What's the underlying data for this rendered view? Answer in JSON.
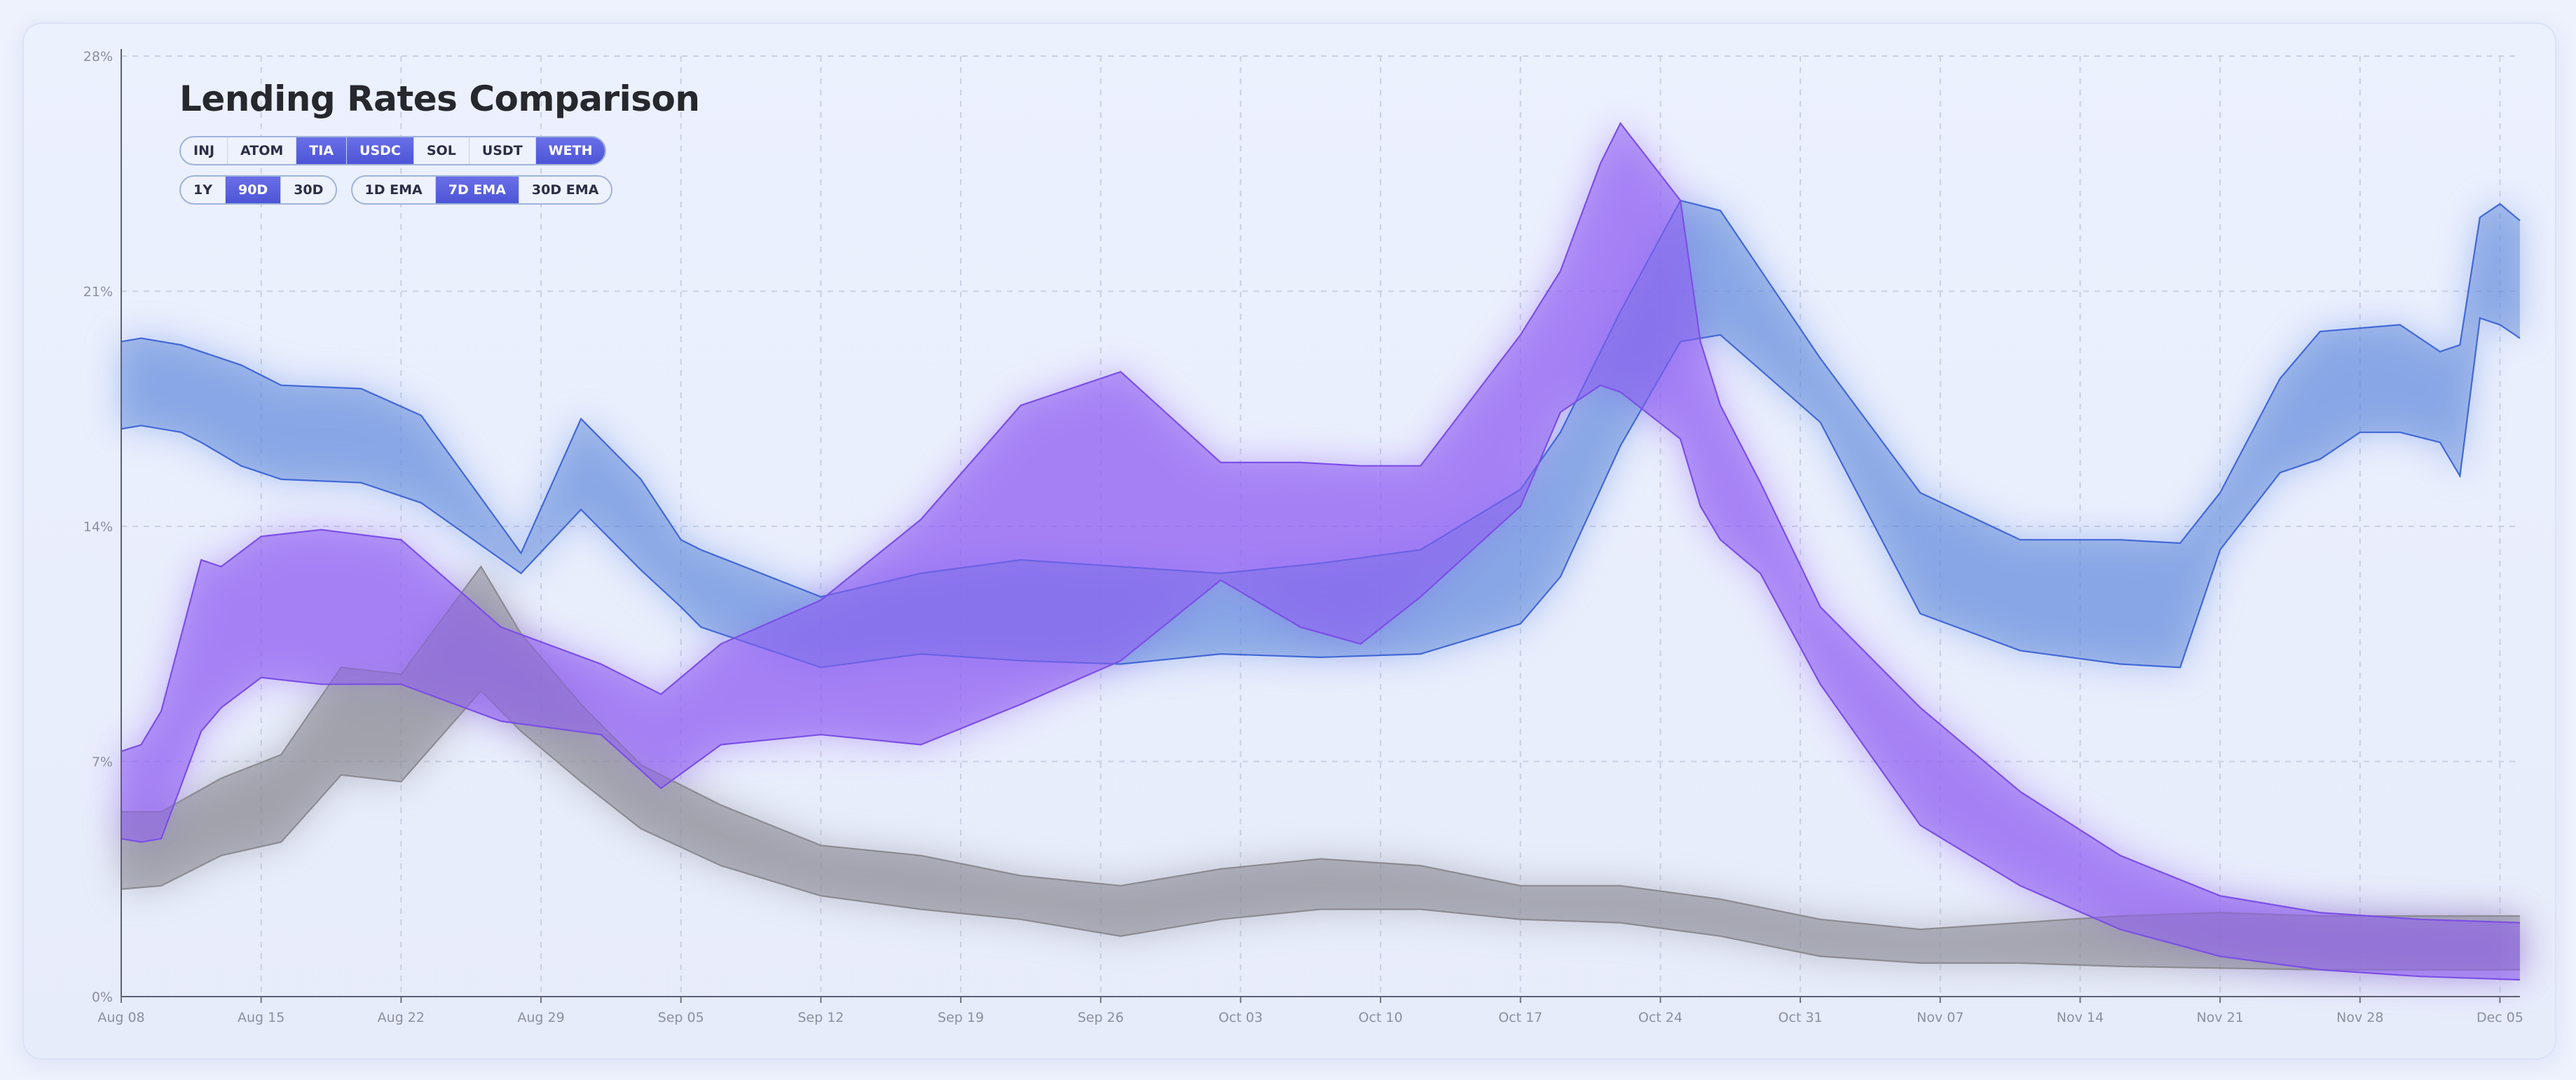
{
  "title": "Lending Rates Comparison",
  "assets": [
    {
      "label": "INJ",
      "selected": false
    },
    {
      "label": "ATOM",
      "selected": false
    },
    {
      "label": "TIA",
      "selected": true
    },
    {
      "label": "USDC",
      "selected": true
    },
    {
      "label": "SOL",
      "selected": false
    },
    {
      "label": "USDT",
      "selected": false
    },
    {
      "label": "WETH",
      "selected": true
    }
  ],
  "ranges": [
    {
      "label": "1Y",
      "selected": false
    },
    {
      "label": "90D",
      "selected": true
    },
    {
      "label": "30D",
      "selected": false
    }
  ],
  "smoothing": [
    {
      "label": "1D EMA",
      "selected": false
    },
    {
      "label": "7D EMA",
      "selected": true
    },
    {
      "label": "30D EMA",
      "selected": false
    }
  ],
  "chart_data": {
    "type": "area",
    "title": "Lending Rates Comparison",
    "x_ticks": [
      "Aug 08",
      "Aug 15",
      "Aug 22",
      "Aug 29",
      "Sep 05",
      "Sep 12",
      "Sep 19",
      "Sep 26",
      "Oct 03",
      "Oct 10",
      "Oct 17",
      "Oct 24",
      "Oct 31",
      "Nov 07",
      "Nov 14",
      "Nov 21",
      "Nov 28",
      "Dec 05"
    ],
    "y_ticks": [
      "0%",
      "7%",
      "14%",
      "21%",
      "28%"
    ],
    "ylim": [
      0,
      28
    ],
    "xlim_days": [
      0,
      120
    ],
    "grid": true,
    "colors": {
      "blue": "#4f74d6",
      "purple": "#8d58f0",
      "gray": "#8e8c95"
    },
    "series": [
      {
        "color": "blue",
        "x": [
          0,
          1,
          3,
          4,
          6,
          8,
          12,
          15,
          20,
          23,
          26,
          28,
          29,
          35,
          40,
          45,
          50,
          55,
          60,
          65,
          70,
          72,
          75,
          78,
          80,
          85,
          90,
          95,
          100,
          103,
          105,
          108,
          110,
          112,
          114,
          116,
          117,
          118,
          119,
          120
        ],
        "upper": [
          19.5,
          19.6,
          19.4,
          19.2,
          18.8,
          18.2,
          18.1,
          17.3,
          13.2,
          17.2,
          15.4,
          13.6,
          13.3,
          11.9,
          12.6,
          13.0,
          12.8,
          12.6,
          12.9,
          13.3,
          15.1,
          16.8,
          20.4,
          23.7,
          23.4,
          19.0,
          15.0,
          13.6,
          13.6,
          13.5,
          15.0,
          18.4,
          19.8,
          19.9,
          20.0,
          19.2,
          19.4,
          23.2,
          23.6,
          23.1
        ],
        "lower": [
          16.9,
          17.0,
          16.8,
          16.5,
          15.8,
          15.4,
          15.3,
          14.7,
          12.6,
          14.5,
          12.7,
          11.6,
          11.0,
          9.8,
          10.2,
          10.0,
          9.9,
          10.2,
          10.1,
          10.2,
          11.1,
          12.5,
          16.4,
          19.5,
          19.7,
          17.1,
          11.4,
          10.3,
          9.9,
          9.8,
          13.3,
          15.6,
          16.0,
          16.8,
          16.8,
          16.5,
          15.5,
          20.2,
          20.0,
          19.6
        ]
      },
      {
        "color": "purple",
        "x": [
          0,
          1,
          2,
          4,
          5,
          7,
          10,
          14,
          19,
          24,
          27,
          30,
          35,
          40,
          45,
          50,
          55,
          59,
          62,
          65,
          70,
          72,
          74,
          75,
          78,
          79,
          80,
          82,
          85,
          90,
          95,
          100,
          105,
          110,
          115,
          120
        ],
        "upper": [
          7.3,
          7.5,
          8.5,
          13.0,
          12.8,
          13.7,
          13.9,
          13.6,
          11.0,
          9.9,
          9.0,
          10.5,
          11.8,
          14.2,
          17.6,
          18.6,
          15.9,
          15.9,
          15.8,
          15.8,
          19.7,
          21.6,
          24.8,
          26.0,
          23.7,
          19.5,
          17.6,
          15.3,
          11.6,
          8.6,
          6.1,
          4.2,
          3.0,
          2.5,
          2.3,
          2.2
        ],
        "lower": [
          4.7,
          4.6,
          4.7,
          7.9,
          8.6,
          9.5,
          9.3,
          9.3,
          8.2,
          7.8,
          6.2,
          7.5,
          7.8,
          7.5,
          8.7,
          10.0,
          12.4,
          11.0,
          10.5,
          11.9,
          14.6,
          17.4,
          18.2,
          18.0,
          16.6,
          14.6,
          13.6,
          12.6,
          9.3,
          5.1,
          3.3,
          2.0,
          1.2,
          0.8,
          0.6,
          0.5
        ]
      },
      {
        "color": "gray",
        "x": [
          0,
          2,
          5,
          8,
          11,
          14,
          18,
          20,
          23,
          26,
          30,
          35,
          40,
          45,
          50,
          55,
          60,
          65,
          70,
          75,
          80,
          85,
          90,
          95,
          100,
          105,
          110,
          115,
          120
        ],
        "upper": [
          5.5,
          5.5,
          6.5,
          7.2,
          9.8,
          9.6,
          12.8,
          10.8,
          8.7,
          6.9,
          5.7,
          4.5,
          4.2,
          3.6,
          3.3,
          3.8,
          4.1,
          3.9,
          3.3,
          3.3,
          2.9,
          2.3,
          2.0,
          2.2,
          2.4,
          2.5,
          2.4,
          2.4,
          2.4
        ],
        "lower": [
          3.2,
          3.3,
          4.2,
          4.6,
          6.6,
          6.4,
          9.1,
          7.9,
          6.4,
          5.0,
          3.9,
          3.0,
          2.6,
          2.3,
          1.8,
          2.3,
          2.6,
          2.6,
          2.3,
          2.2,
          1.8,
          1.2,
          1.0,
          1.0,
          0.9,
          0.85,
          0.8,
          0.8,
          0.8
        ]
      }
    ]
  }
}
